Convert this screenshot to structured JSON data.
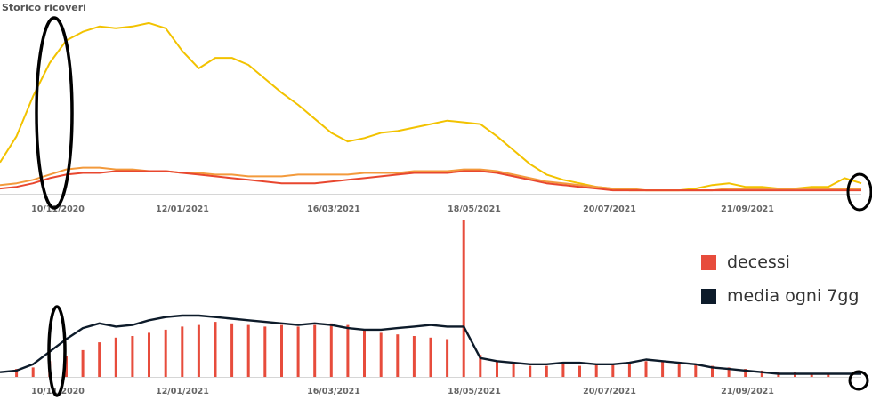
{
  "colors": {
    "yellow": "#f2c200",
    "orange": "#f39a3c",
    "red": "#e8472f",
    "dark": "#0d1b2a",
    "bars": "#e74c3c",
    "gridline": "#d6d6d6",
    "annotation": "#000000"
  },
  "chart_data": [
    {
      "type": "line",
      "title": "Storico ricoveri",
      "x_ticks": [
        "10/11/2020",
        "12/01/2021",
        "16/03/2021",
        "18/05/2021",
        "20/07/2021",
        "21/09/2021"
      ],
      "ylim": [
        0,
        100
      ],
      "series": [
        {
          "color": "yellow",
          "points": [
            [
              0,
              18
            ],
            [
              1,
              33
            ],
            [
              2,
              56
            ],
            [
              3,
              75
            ],
            [
              4,
              88
            ],
            [
              5,
              93
            ],
            [
              6,
              96
            ],
            [
              7,
              95
            ],
            [
              8,
              96
            ],
            [
              9,
              98
            ],
            [
              10,
              95
            ],
            [
              11,
              82
            ],
            [
              12,
              72
            ],
            [
              13,
              78
            ],
            [
              14,
              78
            ],
            [
              15,
              74
            ],
            [
              16,
              66
            ],
            [
              17,
              58
            ],
            [
              18,
              51
            ],
            [
              19,
              43
            ],
            [
              20,
              35
            ],
            [
              21,
              30
            ],
            [
              22,
              32
            ],
            [
              23,
              35
            ],
            [
              24,
              36
            ],
            [
              25,
              38
            ],
            [
              26,
              40
            ],
            [
              27,
              42
            ],
            [
              28,
              41
            ],
            [
              29,
              40
            ],
            [
              30,
              33
            ],
            [
              31,
              25
            ],
            [
              32,
              17
            ],
            [
              33,
              11
            ],
            [
              34,
              8
            ],
            [
              35,
              6
            ],
            [
              36,
              4
            ],
            [
              37,
              3
            ],
            [
              38,
              2
            ],
            [
              39,
              2
            ],
            [
              40,
              2
            ],
            [
              41,
              2
            ],
            [
              42,
              3
            ],
            [
              43,
              5
            ],
            [
              44,
              6
            ],
            [
              45,
              4
            ],
            [
              46,
              4
            ],
            [
              47,
              3
            ],
            [
              48,
              3
            ],
            [
              49,
              4
            ],
            [
              50,
              4
            ],
            [
              51,
              9
            ],
            [
              52,
              6
            ]
          ]
        },
        {
          "color": "orange",
          "points": [
            [
              0,
              5
            ],
            [
              1,
              6
            ],
            [
              2,
              8
            ],
            [
              3,
              11
            ],
            [
              4,
              14
            ],
            [
              5,
              15
            ],
            [
              6,
              15
            ],
            [
              7,
              14
            ],
            [
              8,
              14
            ],
            [
              9,
              13
            ],
            [
              10,
              13
            ],
            [
              11,
              12
            ],
            [
              12,
              12
            ],
            [
              13,
              11
            ],
            [
              14,
              11
            ],
            [
              15,
              10
            ],
            [
              16,
              10
            ],
            [
              17,
              10
            ],
            [
              18,
              11
            ],
            [
              19,
              11
            ],
            [
              20,
              11
            ],
            [
              21,
              11
            ],
            [
              22,
              12
            ],
            [
              23,
              12
            ],
            [
              24,
              12
            ],
            [
              25,
              13
            ],
            [
              26,
              13
            ],
            [
              27,
              13
            ],
            [
              28,
              14
            ],
            [
              29,
              14
            ],
            [
              30,
              13
            ],
            [
              31,
              11
            ],
            [
              32,
              9
            ],
            [
              33,
              7
            ],
            [
              34,
              6
            ],
            [
              35,
              5
            ],
            [
              36,
              4
            ],
            [
              37,
              3
            ],
            [
              38,
              3
            ],
            [
              39,
              2
            ],
            [
              40,
              2
            ],
            [
              41,
              2
            ],
            [
              42,
              2
            ],
            [
              43,
              2
            ],
            [
              44,
              3
            ],
            [
              45,
              3
            ],
            [
              46,
              3
            ],
            [
              47,
              3
            ],
            [
              48,
              3
            ],
            [
              49,
              3
            ],
            [
              50,
              3
            ],
            [
              51,
              3
            ],
            [
              52,
              3
            ]
          ]
        },
        {
          "color": "red",
          "points": [
            [
              0,
              3
            ],
            [
              1,
              4
            ],
            [
              2,
              6
            ],
            [
              3,
              9
            ],
            [
              4,
              11
            ],
            [
              5,
              12
            ],
            [
              6,
              12
            ],
            [
              7,
              13
            ],
            [
              8,
              13
            ],
            [
              9,
              13
            ],
            [
              10,
              13
            ],
            [
              11,
              12
            ],
            [
              12,
              11
            ],
            [
              13,
              10
            ],
            [
              14,
              9
            ],
            [
              15,
              8
            ],
            [
              16,
              7
            ],
            [
              17,
              6
            ],
            [
              18,
              6
            ],
            [
              19,
              6
            ],
            [
              20,
              7
            ],
            [
              21,
              8
            ],
            [
              22,
              9
            ],
            [
              23,
              10
            ],
            [
              24,
              11
            ],
            [
              25,
              12
            ],
            [
              26,
              12
            ],
            [
              27,
              12
            ],
            [
              28,
              13
            ],
            [
              29,
              13
            ],
            [
              30,
              12
            ],
            [
              31,
              10
            ],
            [
              32,
              8
            ],
            [
              33,
              6
            ],
            [
              34,
              5
            ],
            [
              35,
              4
            ],
            [
              36,
              3
            ],
            [
              37,
              2
            ],
            [
              38,
              2
            ],
            [
              39,
              2
            ],
            [
              40,
              2
            ],
            [
              41,
              2
            ],
            [
              42,
              2
            ],
            [
              43,
              2
            ],
            [
              44,
              2
            ],
            [
              45,
              2
            ],
            [
              46,
              2
            ],
            [
              47,
              2
            ],
            [
              48,
              2
            ],
            [
              49,
              2
            ],
            [
              50,
              2
            ],
            [
              51,
              2
            ],
            [
              52,
              2
            ]
          ]
        }
      ]
    },
    {
      "type": "bar",
      "x_ticks": [
        "10/11/2020",
        "12/01/2021",
        "16/03/2021",
        "18/05/2021",
        "20/07/2021",
        "21/09/2021"
      ],
      "ylim": [
        0,
        100
      ],
      "series": [
        {
          "name": "decessi",
          "type": "bar",
          "color": "bars",
          "points": [
            [
              1,
              5
            ],
            [
              2,
              6
            ],
            [
              3,
              10
            ],
            [
              4,
              13
            ],
            [
              5,
              17
            ],
            [
              6,
              22
            ],
            [
              7,
              25
            ],
            [
              8,
              26
            ],
            [
              9,
              28
            ],
            [
              10,
              30
            ],
            [
              11,
              32
            ],
            [
              12,
              33
            ],
            [
              13,
              35
            ],
            [
              14,
              34
            ],
            [
              15,
              33
            ],
            [
              16,
              32
            ],
            [
              17,
              33
            ],
            [
              18,
              32
            ],
            [
              19,
              33
            ],
            [
              20,
              34
            ],
            [
              21,
              33
            ],
            [
              22,
              30
            ],
            [
              23,
              28
            ],
            [
              24,
              27
            ],
            [
              25,
              26
            ],
            [
              26,
              25
            ],
            [
              27,
              24
            ],
            [
              28,
              100
            ],
            [
              29,
              14
            ],
            [
              30,
              10
            ],
            [
              31,
              8
            ],
            [
              32,
              7
            ],
            [
              33,
              7
            ],
            [
              34,
              8
            ],
            [
              35,
              7
            ],
            [
              36,
              8
            ],
            [
              37,
              8
            ],
            [
              38,
              9
            ],
            [
              39,
              10
            ],
            [
              40,
              10
            ],
            [
              41,
              9
            ],
            [
              42,
              8
            ],
            [
              43,
              7
            ],
            [
              44,
              6
            ],
            [
              45,
              5
            ],
            [
              46,
              4
            ],
            [
              47,
              3
            ],
            [
              48,
              3
            ],
            [
              49,
              2
            ],
            [
              50,
              2
            ]
          ]
        },
        {
          "name": "media ogni 7gg",
          "type": "line",
          "color": "dark",
          "points": [
            [
              0,
              3
            ],
            [
              1,
              4
            ],
            [
              2,
              8
            ],
            [
              3,
              16
            ],
            [
              4,
              24
            ],
            [
              5,
              31
            ],
            [
              6,
              34
            ],
            [
              7,
              32
            ],
            [
              8,
              33
            ],
            [
              9,
              36
            ],
            [
              10,
              38
            ],
            [
              11,
              39
            ],
            [
              12,
              39
            ],
            [
              13,
              38
            ],
            [
              14,
              37
            ],
            [
              15,
              36
            ],
            [
              16,
              35
            ],
            [
              17,
              34
            ],
            [
              18,
              33
            ],
            [
              19,
              34
            ],
            [
              20,
              33
            ],
            [
              21,
              31
            ],
            [
              22,
              30
            ],
            [
              23,
              30
            ],
            [
              24,
              31
            ],
            [
              25,
              32
            ],
            [
              26,
              33
            ],
            [
              27,
              32
            ],
            [
              28,
              32
            ],
            [
              29,
              12
            ],
            [
              30,
              10
            ],
            [
              31,
              9
            ],
            [
              32,
              8
            ],
            [
              33,
              8
            ],
            [
              34,
              9
            ],
            [
              35,
              9
            ],
            [
              36,
              8
            ],
            [
              37,
              8
            ],
            [
              38,
              9
            ],
            [
              39,
              11
            ],
            [
              40,
              10
            ],
            [
              41,
              9
            ],
            [
              42,
              8
            ],
            [
              43,
              6
            ],
            [
              44,
              5
            ],
            [
              45,
              4
            ],
            [
              46,
              3
            ],
            [
              47,
              2
            ],
            [
              48,
              2
            ],
            [
              49,
              2
            ],
            [
              50,
              2
            ],
            [
              51,
              2
            ],
            [
              52,
              2
            ]
          ]
        }
      ]
    }
  ],
  "annotations": [
    "ellipse-peak-top",
    "ellipse-peak-bottom",
    "circle-end-top",
    "circle-end-bottom"
  ]
}
